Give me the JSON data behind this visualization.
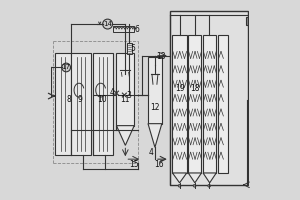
{
  "bg_color": "#e0e0e0",
  "line_color": "#333333",
  "fig_bg": "#d8d8d8",
  "font_size": 5.5
}
